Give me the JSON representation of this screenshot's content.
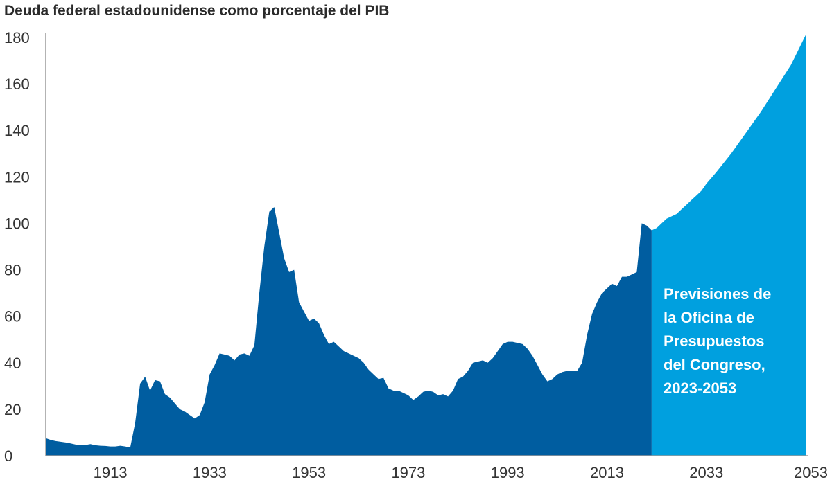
{
  "chart_data": {
    "type": "area",
    "title": "Deuda federal estadounidense como porcentaje del PIB",
    "xlabel": "",
    "ylabel": "",
    "xlim": [
      1900,
      2053
    ],
    "ylim": [
      0,
      180
    ],
    "x_ticks": [
      1913,
      1933,
      1953,
      1973,
      1993,
      2013,
      2033,
      2053
    ],
    "y_ticks": [
      0,
      20,
      40,
      60,
      80,
      100,
      120,
      140,
      160,
      180
    ],
    "grid": false,
    "colors": {
      "historical": "#005DA0",
      "projection": "#00A0DF"
    },
    "series": [
      {
        "points": [
          [
            1900,
            7.5
          ],
          [
            1901,
            6.8
          ],
          [
            1902,
            6.3
          ],
          [
            1903,
            6.0
          ],
          [
            1904,
            5.7
          ],
          [
            1905,
            5.3
          ],
          [
            1906,
            4.8
          ],
          [
            1907,
            4.5
          ],
          [
            1908,
            4.6
          ],
          [
            1909,
            5.0
          ],
          [
            1910,
            4.5
          ],
          [
            1911,
            4.3
          ],
          [
            1912,
            4.2
          ],
          [
            1913,
            4.0
          ],
          [
            1914,
            4.0
          ],
          [
            1915,
            4.3
          ],
          [
            1916,
            4.0
          ],
          [
            1917,
            3.5
          ],
          [
            1918,
            14
          ],
          [
            1919,
            31
          ],
          [
            1920,
            34
          ],
          [
            1921,
            28
          ],
          [
            1922,
            32.5
          ],
          [
            1923,
            32
          ],
          [
            1924,
            26.5
          ],
          [
            1925,
            25
          ],
          [
            1926,
            22.5
          ],
          [
            1927,
            20
          ],
          [
            1928,
            19
          ],
          [
            1929,
            17.5
          ],
          [
            1930,
            16
          ],
          [
            1931,
            17.5
          ],
          [
            1932,
            23
          ],
          [
            1933,
            35
          ],
          [
            1934,
            39
          ],
          [
            1935,
            44
          ],
          [
            1936,
            43.5
          ],
          [
            1937,
            43
          ],
          [
            1938,
            41
          ],
          [
            1939,
            43.5
          ],
          [
            1940,
            44
          ],
          [
            1941,
            43
          ],
          [
            1942,
            47.5
          ],
          [
            1943,
            70
          ],
          [
            1944,
            90
          ],
          [
            1945,
            105
          ],
          [
            1946,
            107
          ],
          [
            1947,
            96
          ],
          [
            1948,
            85
          ],
          [
            1949,
            79
          ],
          [
            1950,
            80
          ],
          [
            1951,
            66
          ],
          [
            1952,
            62
          ],
          [
            1953,
            58
          ],
          [
            1954,
            59
          ],
          [
            1955,
            57
          ],
          [
            1956,
            52
          ],
          [
            1957,
            48
          ],
          [
            1958,
            49
          ],
          [
            1959,
            47
          ],
          [
            1960,
            45
          ],
          [
            1961,
            44
          ],
          [
            1962,
            43
          ],
          [
            1963,
            42
          ],
          [
            1964,
            40
          ],
          [
            1965,
            37
          ],
          [
            1966,
            35
          ],
          [
            1967,
            33
          ],
          [
            1968,
            33.5
          ],
          [
            1969,
            29
          ],
          [
            1970,
            28
          ],
          [
            1971,
            28
          ],
          [
            1972,
            27
          ],
          [
            1973,
            26
          ],
          [
            1974,
            24
          ],
          [
            1975,
            25.5
          ],
          [
            1976,
            27.5
          ],
          [
            1977,
            28
          ],
          [
            1978,
            27.5
          ],
          [
            1979,
            26
          ],
          [
            1980,
            26.5
          ],
          [
            1981,
            25.5
          ],
          [
            1982,
            28
          ],
          [
            1983,
            33
          ],
          [
            1984,
            34
          ],
          [
            1985,
            36.5
          ],
          [
            1986,
            40
          ],
          [
            1987,
            40.5
          ],
          [
            1988,
            41
          ],
          [
            1989,
            40
          ],
          [
            1990,
            42
          ],
          [
            1991,
            45
          ],
          [
            1992,
            48
          ],
          [
            1993,
            49
          ],
          [
            1994,
            49
          ],
          [
            1995,
            48.5
          ],
          [
            1996,
            48
          ],
          [
            1997,
            46
          ],
          [
            1998,
            43
          ],
          [
            1999,
            39
          ],
          [
            2000,
            35
          ],
          [
            2001,
            32
          ],
          [
            2002,
            33
          ],
          [
            2003,
            35
          ],
          [
            2004,
            36
          ],
          [
            2005,
            36.5
          ],
          [
            2006,
            36.5
          ],
          [
            2007,
            36.5
          ],
          [
            2008,
            40
          ],
          [
            2009,
            52
          ],
          [
            2010,
            61
          ],
          [
            2011,
            66
          ],
          [
            2012,
            70
          ],
          [
            2013,
            72
          ],
          [
            2014,
            74
          ],
          [
            2015,
            73
          ],
          [
            2016,
            77
          ],
          [
            2017,
            77
          ],
          [
            2018,
            78
          ],
          [
            2019,
            79
          ],
          [
            2020,
            100
          ],
          [
            2021,
            99
          ],
          [
            2022,
            97
          ]
        ]
      },
      {
        "points": [
          [
            2022,
            97
          ],
          [
            2023,
            98
          ],
          [
            2024,
            100
          ],
          [
            2025,
            102
          ],
          [
            2026,
            103
          ],
          [
            2027,
            104
          ],
          [
            2028,
            106
          ],
          [
            2029,
            108
          ],
          [
            2030,
            110
          ],
          [
            2031,
            112
          ],
          [
            2032,
            114
          ],
          [
            2033,
            117
          ],
          [
            2035,
            122
          ],
          [
            2038,
            130
          ],
          [
            2041,
            139
          ],
          [
            2044,
            148
          ],
          [
            2047,
            158
          ],
          [
            2050,
            168
          ],
          [
            2053,
            181
          ]
        ]
      }
    ],
    "annotations": [
      {
        "lines": [
          "Previsiones de",
          "la Oficina de",
          "Presupuestos",
          "del Congreso,",
          "2023-2053"
        ]
      }
    ]
  }
}
